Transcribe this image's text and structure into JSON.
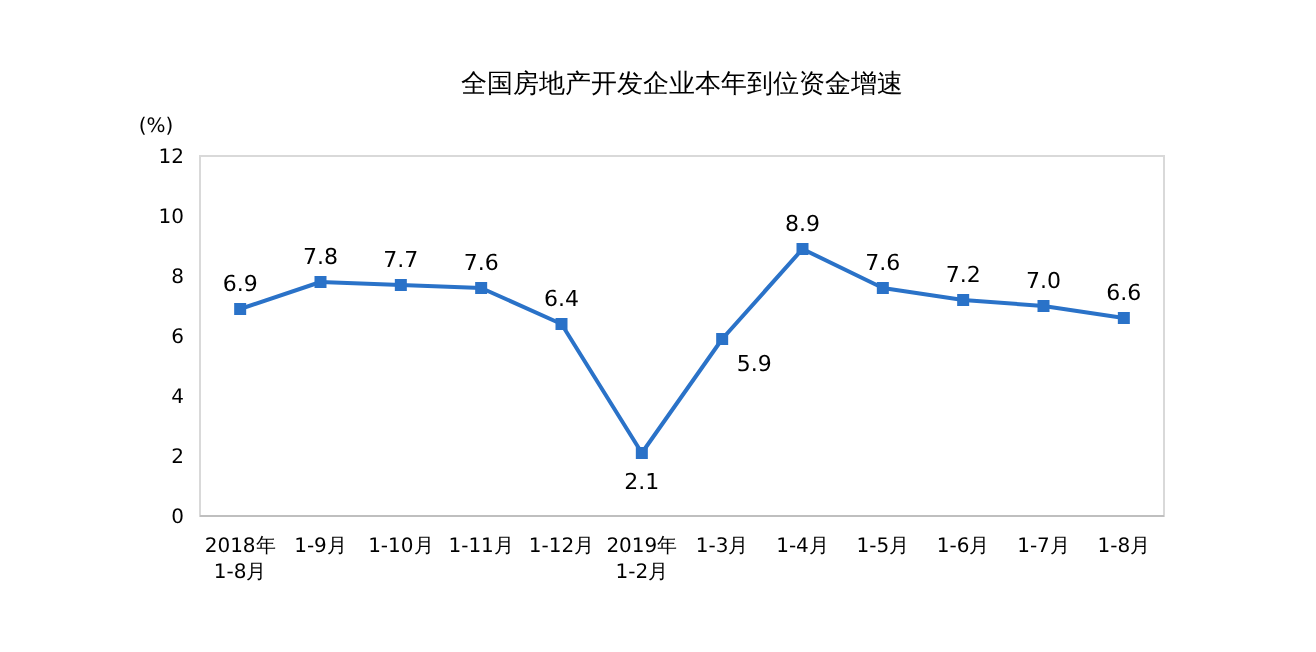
{
  "chart_data": {
    "type": "line",
    "title": "全国房地产开发企业本年到位资金增速",
    "ylabel": "(%)",
    "categories": [
      "2018年\n1-8月",
      "1-9月",
      "1-10月",
      "1-11月",
      "1-12月",
      "2019年\n1-2月",
      "1-3月",
      "1-4月",
      "1-5月",
      "1-6月",
      "1-7月",
      "1-8月"
    ],
    "series": [
      {
        "color": "#2a72c8",
        "values": [
          6.9,
          7.8,
          7.7,
          7.6,
          6.4,
          2.1,
          5.9,
          8.9,
          7.6,
          7.2,
          7.0,
          6.6
        ],
        "value_labels": [
          "6.9",
          "7.8",
          "7.7",
          "7.6",
          "6.4",
          "2.1",
          "5.9",
          "8.9",
          "7.6",
          "7.2",
          "7.0",
          "6.6"
        ]
      }
    ],
    "ylim": [
      0,
      12
    ],
    "yticks": [
      0,
      2,
      4,
      6,
      8,
      10,
      12
    ],
    "marker": "square",
    "grid": false
  }
}
